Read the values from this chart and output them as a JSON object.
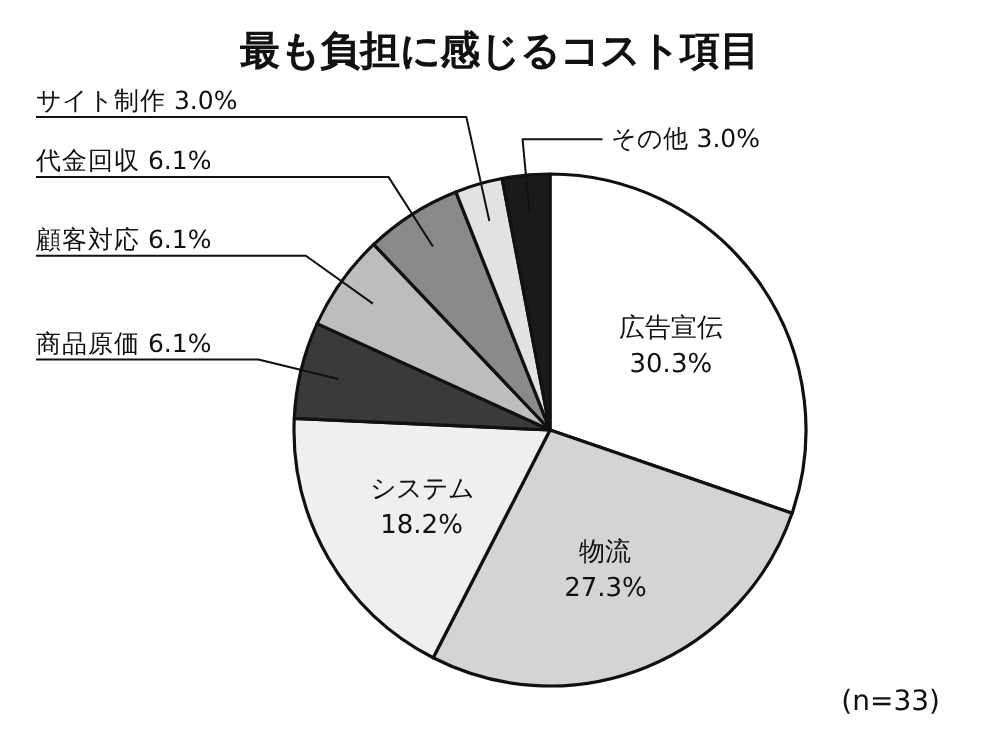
{
  "chart_data": {
    "type": "pie",
    "title": "最も負担に感じるコスト項目",
    "categories": [
      "広告宣伝",
      "物流",
      "システム",
      "商品原価",
      "顧客対応",
      "代金回収",
      "サイト制作",
      "その他"
    ],
    "values": [
      30.3,
      27.3,
      18.2,
      6.1,
      6.1,
      6.1,
      3.0,
      3.0
    ],
    "value_labels": [
      "30.3%",
      "27.3%",
      "18.2%",
      "6.1%",
      "6.1%",
      "6.1%",
      "3.0%",
      "3.0%"
    ],
    "colors": [
      "#ffffff",
      "#d4d4d4",
      "#efefef",
      "#3a3a3a",
      "#bdbdbd",
      "#8a8a8a",
      "#e2e2e2",
      "#1a1a1a"
    ],
    "annotations": [
      "(n=33)"
    ]
  }
}
